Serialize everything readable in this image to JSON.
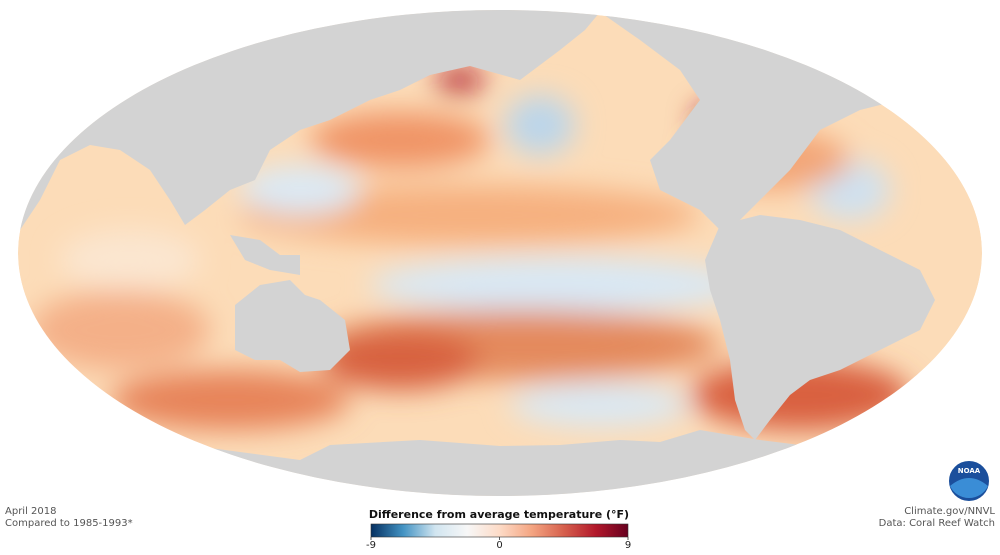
{
  "date": "April 2018",
  "baseline": "Compared to 1985-1993*",
  "legend": {
    "title": "Difference from average temperature (°F)",
    "lim": [
      -9,
      9
    ],
    "ticks": [
      -9,
      0,
      9
    ],
    "colors": [
      "#053061",
      "#4393c3",
      "#d1e5f0",
      "#f7f7f7",
      "#fddbc7",
      "#f4a582",
      "#d6604d",
      "#b2182b",
      "#67001f"
    ]
  },
  "credit": "Climate.gov/NNVL",
  "source": "Data: Coral Reef Watch",
  "logo": "NOAA"
}
